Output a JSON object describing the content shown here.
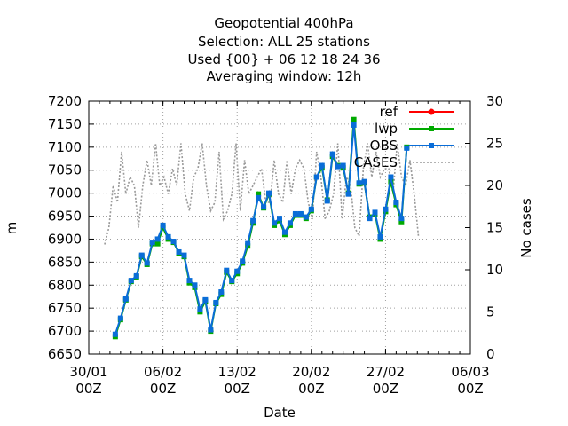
{
  "chart_data": {
    "type": "line",
    "title_lines": [
      "Geopotential 400hPa",
      "Selection: ALL     25 stations",
      "Used {00} + 06 12 18 24 36",
      "Averaging window: 12h"
    ],
    "xlabel": "Date",
    "ylabel": "m",
    "y2label": "No cases",
    "xlim": [
      "2000-01-30T00:00",
      "2000-03-06T00:00"
    ],
    "ylim": [
      6650,
      7200
    ],
    "y2lim": [
      0,
      30
    ],
    "x_ticks": [
      {
        "date": "2000-01-30T00:00",
        "line1": "30/01",
        "line2": "00Z"
      },
      {
        "date": "2000-02-06T00:00",
        "line1": "06/02",
        "line2": "00Z"
      },
      {
        "date": "2000-02-13T00:00",
        "line1": "13/02",
        "line2": "00Z"
      },
      {
        "date": "2000-02-20T00:00",
        "line1": "20/02",
        "line2": "00Z"
      },
      {
        "date": "2000-02-27T00:00",
        "line1": "27/02",
        "line2": "00Z"
      },
      {
        "date": "2000-03-06T00:00",
        "line1": "06/03",
        "line2": "00Z"
      }
    ],
    "y_ticks": [
      "6650",
      "6700",
      "6750",
      "6800",
      "6850",
      "6900",
      "6950",
      "7000",
      "7050",
      "7100",
      "7150",
      "7200"
    ],
    "y2_ticks": [
      "0",
      "5",
      "10",
      "15",
      "20",
      "25",
      "30"
    ],
    "grid": true,
    "legend_position": "top-right",
    "series": [
      {
        "name": "ref",
        "color": "#ff0000",
        "marker": "circle",
        "values": []
      },
      {
        "name": "lwp",
        "color": "#00aa00",
        "marker": "square",
        "values": [
          6688,
          6725,
          6768,
          6808,
          6818,
          6862,
          6845,
          6890,
          6890,
          6925,
          6900,
          6893,
          6870,
          6862,
          6805,
          6795,
          6742,
          6765,
          6700,
          6760,
          6780,
          6828,
          6808,
          6825,
          6848,
          6885,
          6935,
          6998,
          6968,
          6998,
          6930,
          6940,
          6910,
          6930,
          6952,
          6952,
          6945,
          6962,
          7035,
          7055,
          6985,
          7080,
          7060,
          7055,
          7000,
          7160,
          7020,
          7022,
          6948,
          6955,
          6900,
          6960,
          7025,
          6975,
          6938,
          7100
        ]
      },
      {
        "name": "OBS",
        "color": "#0a6dd8",
        "marker": "square",
        "values": [
          6693,
          6728,
          6770,
          6810,
          6820,
          6865,
          6848,
          6893,
          6900,
          6930,
          6905,
          6895,
          6872,
          6865,
          6810,
          6800,
          6748,
          6768,
          6703,
          6762,
          6785,
          6832,
          6810,
          6830,
          6852,
          6892,
          6940,
          6990,
          6970,
          7000,
          6935,
          6945,
          6915,
          6935,
          6955,
          6955,
          6948,
          6965,
          7035,
          7060,
          6983,
          7085,
          7058,
          7060,
          6998,
          7148,
          7022,
          7025,
          6945,
          6958,
          6905,
          6965,
          7035,
          6980,
          6945,
          7098
        ]
      },
      {
        "name": "CASES",
        "color": "#999999",
        "axis": "y2",
        "style": "dotted",
        "values": [
          13,
          15,
          20,
          18,
          24,
          19,
          21,
          20,
          15,
          20,
          23,
          20,
          25,
          20,
          21,
          19,
          22,
          20,
          25,
          19,
          17,
          21,
          22,
          25,
          20,
          17,
          18,
          24,
          16,
          17,
          19,
          25,
          17,
          23,
          19,
          20,
          21,
          22,
          18,
          18,
          23,
          19,
          18,
          23,
          19,
          22,
          23,
          22,
          18,
          16,
          24,
          21,
          16,
          17,
          19,
          25,
          16,
          21,
          20,
          15,
          14,
          22,
          25,
          21,
          24,
          21,
          22,
          22,
          19,
          25,
          21,
          20,
          23,
          19,
          14
        ]
      }
    ],
    "obs_start": "2000-02-01T12:00",
    "obs_step_hours": 12,
    "cases_start": "2000-01-31T12:00",
    "cases_step_hours": 9.6
  }
}
